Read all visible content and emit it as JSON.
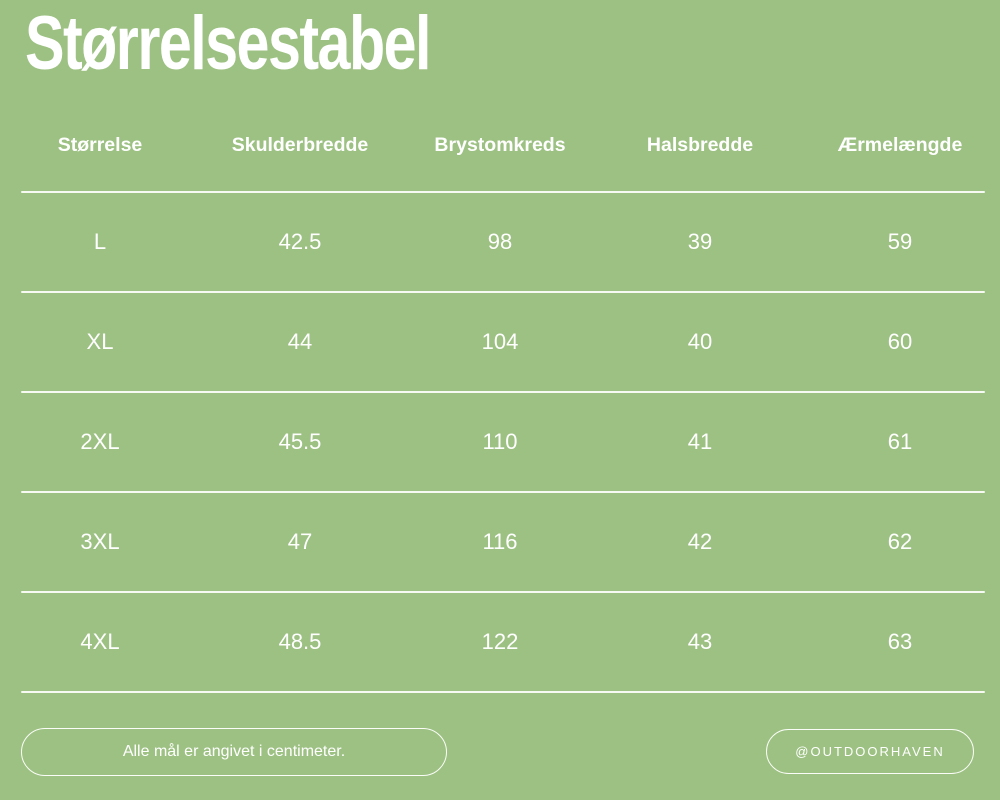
{
  "page": {
    "background_color": "#9cc182",
    "text_color": "#ffffff",
    "divider_color": "#f7faf2"
  },
  "title": "Størrelsestabel",
  "chart_data": {
    "type": "table",
    "title": "Størrelsestabel",
    "columns": [
      "Størrelse",
      "Skulderbredde",
      "Brystomkreds",
      "Halsbredde",
      "Ærmelængde"
    ],
    "rows": [
      [
        "L",
        "42.5",
        "98",
        "39",
        "59"
      ],
      [
        "XL",
        "44",
        "104",
        "40",
        "60"
      ],
      [
        "2XL",
        "45.5",
        "110",
        "41",
        "61"
      ],
      [
        "3XL",
        "47",
        "116",
        "42",
        "62"
      ],
      [
        "4XL",
        "48.5",
        "122",
        "43",
        "63"
      ]
    ],
    "units_note": "Alle mål er angivet i centimeter."
  },
  "footer": {
    "note": "Alle mål er angivet i centimeter.",
    "handle": "@OUTDOORHAVEN"
  }
}
